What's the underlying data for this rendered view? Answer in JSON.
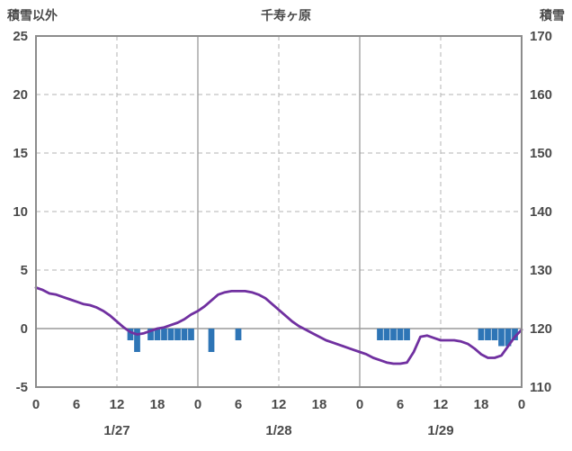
{
  "header": {
    "left_axis_title": "積雪以外",
    "chart_title": "千寿ヶ原",
    "right_axis_title": "積雪"
  },
  "colors": {
    "line": "#7030a0",
    "bar": "#2e75b6",
    "grid": "#b3b3b3",
    "solid_grid": "#9a9a9a",
    "axis_frame": "#8c8c8c",
    "text": "#4a4a4a"
  },
  "chart_data": {
    "type": "line",
    "title": "千寿ヶ原",
    "x_hours_range": [
      0,
      72
    ],
    "x_tick_hours": [
      0,
      6,
      12,
      18,
      24,
      30,
      36,
      42,
      48,
      54,
      60,
      66,
      72
    ],
    "x_tick_labels": [
      "0",
      "6",
      "12",
      "18",
      "0",
      "6",
      "12",
      "18",
      "0",
      "6",
      "12",
      "18",
      "0"
    ],
    "date_labels": [
      {
        "label": "1/27",
        "center_hour": 12
      },
      {
        "label": "1/28",
        "center_hour": 36
      },
      {
        "label": "1/29",
        "center_hour": 60
      }
    ],
    "left_axis": {
      "title": "積雪以外",
      "min": -5,
      "max": 25,
      "ticks": [
        25,
        20,
        15,
        10,
        5,
        0,
        -5
      ]
    },
    "right_axis": {
      "title": "積雪",
      "min": 110,
      "max": 170,
      "ticks": [
        170,
        160,
        150,
        140,
        130,
        120,
        110
      ]
    },
    "grid": {
      "h_dashed_left": [
        20,
        15,
        10,
        5
      ],
      "h_solid_left": [
        0
      ],
      "v_dashed_hours": [
        12,
        36,
        60
      ],
      "v_solid_hours": [
        24,
        48
      ]
    },
    "series": [
      {
        "name": "積雪以外",
        "type": "line",
        "axis": "left",
        "color": "#7030a0",
        "values": [
          3.5,
          3.3,
          3.0,
          2.9,
          2.7,
          2.5,
          2.3,
          2.1,
          2.0,
          1.8,
          1.5,
          1.1,
          0.6,
          0.1,
          -0.3,
          -0.5,
          -0.4,
          -0.2,
          0.0,
          0.1,
          0.3,
          0.5,
          0.8,
          1.2,
          1.5,
          1.9,
          2.4,
          2.9,
          3.1,
          3.2,
          3.2,
          3.2,
          3.1,
          2.9,
          2.6,
          2.1,
          1.6,
          1.1,
          0.6,
          0.2,
          -0.1,
          -0.4,
          -0.7,
          -1.0,
          -1.2,
          -1.4,
          -1.6,
          -1.8,
          -2.0,
          -2.2,
          -2.5,
          -2.7,
          -2.9,
          -3.0,
          -3.0,
          -2.9,
          -2.0,
          -0.7,
          -0.6,
          -0.8,
          -1.0,
          -1.0,
          -1.0,
          -1.1,
          -1.3,
          -1.7,
          -2.2,
          -2.5,
          -2.5,
          -2.3,
          -1.5,
          -0.7,
          -0.1
        ]
      },
      {
        "name": "積雪",
        "type": "bar",
        "axis": "right",
        "baseline": 120,
        "color": "#2e75b6",
        "values": [
          null,
          null,
          null,
          null,
          null,
          null,
          null,
          null,
          null,
          null,
          null,
          null,
          null,
          null,
          118,
          116,
          null,
          118,
          118,
          118,
          118,
          118,
          118,
          118,
          null,
          null,
          116,
          null,
          null,
          null,
          118,
          null,
          null,
          null,
          null,
          null,
          null,
          null,
          null,
          null,
          null,
          null,
          null,
          null,
          null,
          null,
          null,
          null,
          null,
          null,
          null,
          118,
          118,
          118,
          118,
          118,
          null,
          null,
          null,
          null,
          null,
          null,
          null,
          null,
          null,
          null,
          118,
          118,
          118,
          117,
          117,
          118,
          null
        ]
      }
    ]
  }
}
